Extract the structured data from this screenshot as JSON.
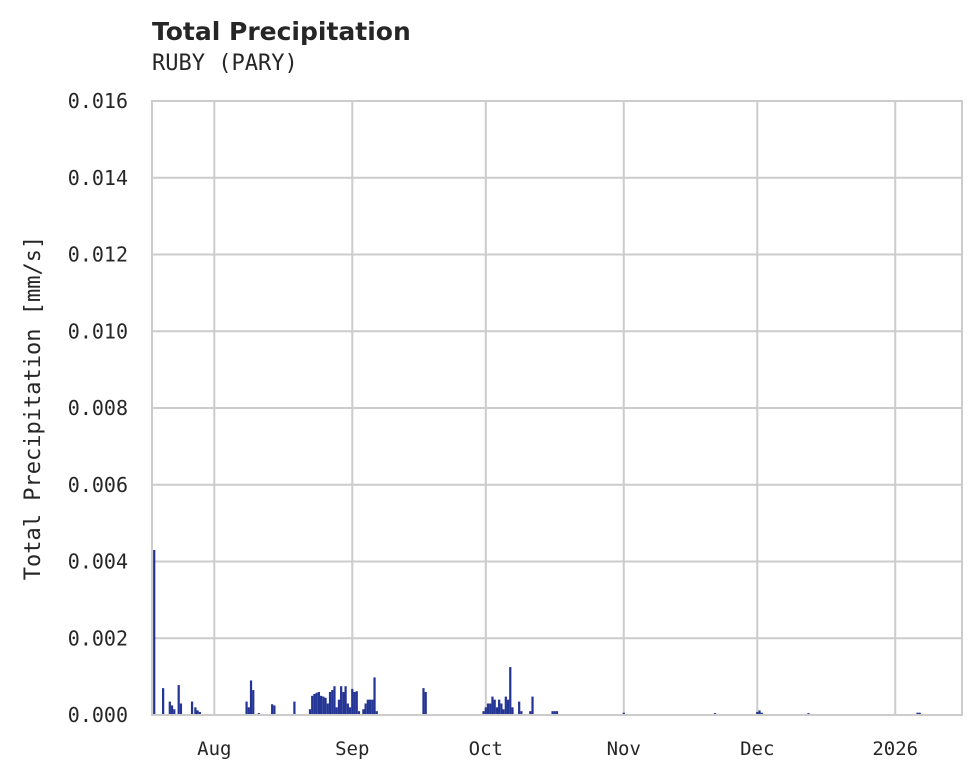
{
  "chart_data": {
    "type": "bar",
    "title": "Total Precipitation",
    "subtitle": "RUBY (PARY)",
    "xlabel": "",
    "ylabel": "Total Precipitation [mm/s]",
    "ylim": [
      0,
      0.016
    ],
    "yticks": [
      "0.000",
      "0.002",
      "0.004",
      "0.006",
      "0.008",
      "0.010",
      "0.012",
      "0.014",
      "0.016"
    ],
    "xticks": [
      {
        "label": "Aug",
        "date": "2025-08-01"
      },
      {
        "label": "Sep",
        "date": "2025-09-01"
      },
      {
        "label": "Oct",
        "date": "2025-10-01"
      },
      {
        "label": "Nov",
        "date": "2025-11-01"
      },
      {
        "label": "Dec",
        "date": "2025-12-01"
      },
      {
        "label": "2026",
        "date": "2026-01-01"
      }
    ],
    "xlim": [
      "2025-07-18",
      "2026-01-16"
    ],
    "grid": true,
    "legend": null,
    "series_color": "#233494",
    "grid_color": "#cccccc",
    "points": [
      [
        "2025-07-18T12",
        0.0043
      ],
      [
        "2025-07-20T12",
        0.0007
      ],
      [
        "2025-07-22T00",
        0.00035
      ],
      [
        "2025-07-22T12",
        0.00025
      ],
      [
        "2025-07-23T00",
        0.00015
      ],
      [
        "2025-07-24T00",
        0.00078
      ],
      [
        "2025-07-24T12",
        0.0003
      ],
      [
        "2025-07-27T00",
        0.00035
      ],
      [
        "2025-07-27T18",
        0.0002
      ],
      [
        "2025-07-28T06",
        0.00012
      ],
      [
        "2025-07-28T18",
        8e-05
      ],
      [
        "2025-08-08T06",
        0.00035
      ],
      [
        "2025-08-08T18",
        0.0002
      ],
      [
        "2025-08-09T06",
        0.0009
      ],
      [
        "2025-08-09T18",
        0.00065
      ],
      [
        "2025-08-11T00",
        5e-05
      ],
      [
        "2025-08-14T00",
        0.00028
      ],
      [
        "2025-08-14T12",
        0.00025
      ],
      [
        "2025-08-19T00",
        0.00035
      ],
      [
        "2025-08-22T12",
        0.00015
      ],
      [
        "2025-08-23T00",
        0.0005
      ],
      [
        "2025-08-23T12",
        0.00055
      ],
      [
        "2025-08-24T00",
        0.00058
      ],
      [
        "2025-08-24T12",
        0.0006
      ],
      [
        "2025-08-25T00",
        0.0005
      ],
      [
        "2025-08-25T12",
        0.00048
      ],
      [
        "2025-08-26T00",
        0.00045
      ],
      [
        "2025-08-26T12",
        0.0003
      ],
      [
        "2025-08-27T00",
        0.0006
      ],
      [
        "2025-08-27T12",
        0.00065
      ],
      [
        "2025-08-28T00",
        0.00075
      ],
      [
        "2025-08-28T12",
        0.0002
      ],
      [
        "2025-08-29T00",
        0.0004
      ],
      [
        "2025-08-29T12",
        0.00075
      ],
      [
        "2025-08-30T00",
        0.0006
      ],
      [
        "2025-08-30T12",
        0.00075
      ],
      [
        "2025-08-31T00",
        0.0003
      ],
      [
        "2025-08-31T12",
        0.0002
      ],
      [
        "2025-09-01T00",
        0.00068
      ],
      [
        "2025-09-01T12",
        0.0006
      ],
      [
        "2025-09-02T00",
        0.00062
      ],
      [
        "2025-09-02T12",
        0.0001
      ],
      [
        "2025-09-03T12",
        0.00015
      ],
      [
        "2025-09-04T00",
        0.0003
      ],
      [
        "2025-09-04T12",
        0.0004
      ],
      [
        "2025-09-05T00",
        0.0004
      ],
      [
        "2025-09-05T12",
        0.0004
      ],
      [
        "2025-09-06T00",
        0.00098
      ],
      [
        "2025-09-06T12",
        0.0001
      ],
      [
        "2025-09-17T00",
        0.0007
      ],
      [
        "2025-09-17T12",
        0.0006
      ],
      [
        "2025-09-30T12",
        0.0001
      ],
      [
        "2025-10-01T00",
        0.0002
      ],
      [
        "2025-10-01T12",
        0.0003
      ],
      [
        "2025-10-02T00",
        0.0003
      ],
      [
        "2025-10-02T12",
        0.00048
      ],
      [
        "2025-10-03T00",
        0.0004
      ],
      [
        "2025-10-03T12",
        0.0002
      ],
      [
        "2025-10-04T00",
        0.0004
      ],
      [
        "2025-10-04T12",
        0.0003
      ],
      [
        "2025-10-05T00",
        0.00015
      ],
      [
        "2025-10-05T12",
        0.00048
      ],
      [
        "2025-10-06T00",
        0.0004
      ],
      [
        "2025-10-06T12",
        0.00125
      ],
      [
        "2025-10-07T00",
        0.0002
      ],
      [
        "2025-10-08T12",
        0.00035
      ],
      [
        "2025-10-09T00",
        0.0001
      ],
      [
        "2025-10-11T00",
        0.0001
      ],
      [
        "2025-10-11T12",
        0.00048
      ],
      [
        "2025-10-16T00",
        0.0001
      ],
      [
        "2025-10-16T12",
        0.0001
      ],
      [
        "2025-10-17T00",
        0.0001
      ],
      [
        "2025-11-01T00",
        6e-05
      ],
      [
        "2025-11-21T12",
        5e-05
      ],
      [
        "2025-12-01T00",
        8e-05
      ],
      [
        "2025-12-01T12",
        0.00012
      ],
      [
        "2025-12-02T00",
        6e-05
      ],
      [
        "2025-12-12T12",
        5e-05
      ],
      [
        "2026-01-06T00",
        6e-05
      ],
      [
        "2026-01-06T12",
        6e-05
      ]
    ]
  }
}
